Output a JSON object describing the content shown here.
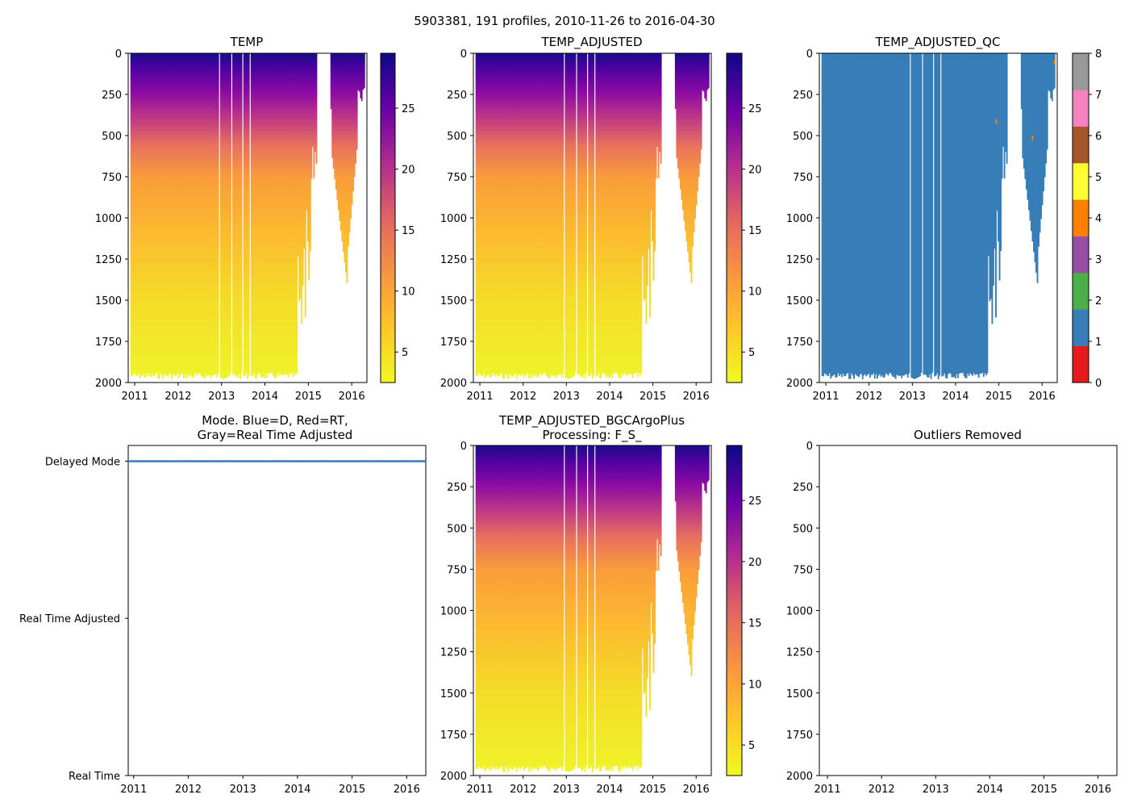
{
  "figure": {
    "suptitle": "5903381, 191 profiles, 2010-11-26 to 2016-04-30"
  },
  "colors": {
    "temp_cmap": [
      "#f0f921",
      "#fdc527",
      "#f89540",
      "#e16462",
      "#b12a90",
      "#6a00a8",
      "#0d0887"
    ],
    "qc_blue": "#377eb8",
    "mode_blue": "#377eb8",
    "qc_outlier": "#ff7f00"
  },
  "chart_data": [
    {
      "id": "temp",
      "type": "heatmap",
      "title": "TEMP",
      "xlabel": "",
      "ylabel": "",
      "x_ticks": [
        "2011",
        "2012",
        "2013",
        "2014",
        "2015",
        "2016"
      ],
      "x_tick_values": [
        2011,
        2012,
        2013,
        2014,
        2015,
        2016
      ],
      "xlim": [
        2010.85,
        2016.35
      ],
      "y_ticks": [
        "0",
        "250",
        "500",
        "750",
        "1000",
        "1250",
        "1500",
        "1750",
        "2000"
      ],
      "y_tick_values": [
        0,
        250,
        500,
        750,
        1000,
        1250,
        1500,
        1750,
        2000
      ],
      "ylim": [
        2000,
        0
      ],
      "colorbar": {
        "ticks": [
          "5",
          "10",
          "15",
          "20",
          "25"
        ],
        "tick_values": [
          5,
          10,
          15,
          20,
          25
        ],
        "range": [
          2.5,
          29.5
        ]
      }
    },
    {
      "id": "temp_adjusted",
      "type": "heatmap",
      "title": "TEMP_ADJUSTED",
      "xlabel": "",
      "ylabel": "",
      "x_ticks": [
        "2011",
        "2012",
        "2013",
        "2014",
        "2015",
        "2016"
      ],
      "x_tick_values": [
        2011,
        2012,
        2013,
        2014,
        2015,
        2016
      ],
      "xlim": [
        2010.85,
        2016.35
      ],
      "y_ticks": [
        "0",
        "250",
        "500",
        "750",
        "1000",
        "1250",
        "1500",
        "1750",
        "2000"
      ],
      "y_tick_values": [
        0,
        250,
        500,
        750,
        1000,
        1250,
        1500,
        1750,
        2000
      ],
      "ylim": [
        2000,
        0
      ],
      "colorbar": {
        "ticks": [
          "5",
          "10",
          "15",
          "20",
          "25"
        ],
        "tick_values": [
          5,
          10,
          15,
          20,
          25
        ],
        "range": [
          2.5,
          29.5
        ]
      }
    },
    {
      "id": "temp_adjusted_qc",
      "type": "heatmap",
      "title": "TEMP_ADJUSTED_QC",
      "xlabel": "",
      "ylabel": "",
      "x_ticks": [
        "2011",
        "2012",
        "2013",
        "2014",
        "2015",
        "2016"
      ],
      "x_tick_values": [
        2011,
        2012,
        2013,
        2014,
        2015,
        2016
      ],
      "xlim": [
        2010.85,
        2016.35
      ],
      "y_ticks": [
        "0",
        "250",
        "500",
        "750",
        "1000",
        "1250",
        "1500",
        "1750",
        "2000"
      ],
      "y_tick_values": [
        0,
        250,
        500,
        750,
        1000,
        1250,
        1500,
        1750,
        2000
      ],
      "ylim": [
        2000,
        0
      ],
      "dominant_qc_flag": 1,
      "colorbar": {
        "ticks": [
          "0",
          "1",
          "2",
          "3",
          "4",
          "5",
          "6",
          "7",
          "8"
        ],
        "tick_values": [
          0,
          1,
          2,
          3,
          4,
          5,
          6,
          7,
          8
        ],
        "range": [
          0,
          8
        ],
        "categories": [
          "#e41a1c",
          "#377eb8",
          "#4daf4a",
          "#984ea3",
          "#ff7f00",
          "#ffff33",
          "#a65628",
          "#f781bf",
          "#999999"
        ]
      }
    },
    {
      "id": "mode",
      "type": "scatter",
      "title_lines": [
        "Mode. Blue=D, Red=RT,",
        "Gray=Real Time Adjusted"
      ],
      "xlabel": "",
      "ylabel": "",
      "x_ticks": [
        "2011",
        "2012",
        "2013",
        "2014",
        "2015",
        "2016"
      ],
      "x_tick_values": [
        2011,
        2012,
        2013,
        2014,
        2015,
        2016
      ],
      "xlim": [
        2010.9,
        2016.35
      ],
      "y_ticks": [
        "Real Time",
        "Real Time Adjusted",
        "Delayed Mode"
      ],
      "y_tick_values": [
        0,
        1,
        2
      ],
      "ylim": [
        0,
        2.1
      ],
      "series": [
        {
          "name": "Delayed Mode",
          "mode_value": 2,
          "x_start": 2010.9,
          "x_end": 2016.33,
          "profiles": 191
        }
      ]
    },
    {
      "id": "bgcargoplus",
      "type": "heatmap",
      "title_lines": [
        "TEMP_ADJUSTED_BGCArgoPlus",
        "Processing: F_S_"
      ],
      "xlabel": "",
      "ylabel": "",
      "x_ticks": [
        "2011",
        "2012",
        "2013",
        "2014",
        "2015",
        "2016"
      ],
      "x_tick_values": [
        2011,
        2012,
        2013,
        2014,
        2015,
        2016
      ],
      "xlim": [
        2010.85,
        2016.35
      ],
      "y_ticks": [
        "0",
        "250",
        "500",
        "750",
        "1000",
        "1250",
        "1500",
        "1750",
        "2000"
      ],
      "y_tick_values": [
        0,
        250,
        500,
        750,
        1000,
        1250,
        1500,
        1750,
        2000
      ],
      "ylim": [
        2000,
        0
      ],
      "colorbar": {
        "ticks": [
          "5",
          "10",
          "15",
          "20",
          "25"
        ],
        "tick_values": [
          5,
          10,
          15,
          20,
          25
        ],
        "range": [
          2.5,
          29.5
        ]
      }
    },
    {
      "id": "outliers",
      "type": "scatter",
      "title": "Outliers Removed",
      "xlabel": "",
      "ylabel": "",
      "x_ticks": [
        "2011",
        "2012",
        "2013",
        "2014",
        "2015",
        "2016"
      ],
      "x_tick_values": [
        2011,
        2012,
        2013,
        2014,
        2015,
        2016
      ],
      "xlim": [
        2010.85,
        2016.35
      ],
      "y_ticks": [
        "0",
        "250",
        "500",
        "750",
        "1000",
        "1250",
        "1500",
        "1750",
        "2000"
      ],
      "y_tick_values": [
        0,
        250,
        500,
        750,
        1000,
        1250,
        1500,
        1750,
        2000
      ],
      "ylim": [
        2000,
        0
      ],
      "series": []
    }
  ]
}
